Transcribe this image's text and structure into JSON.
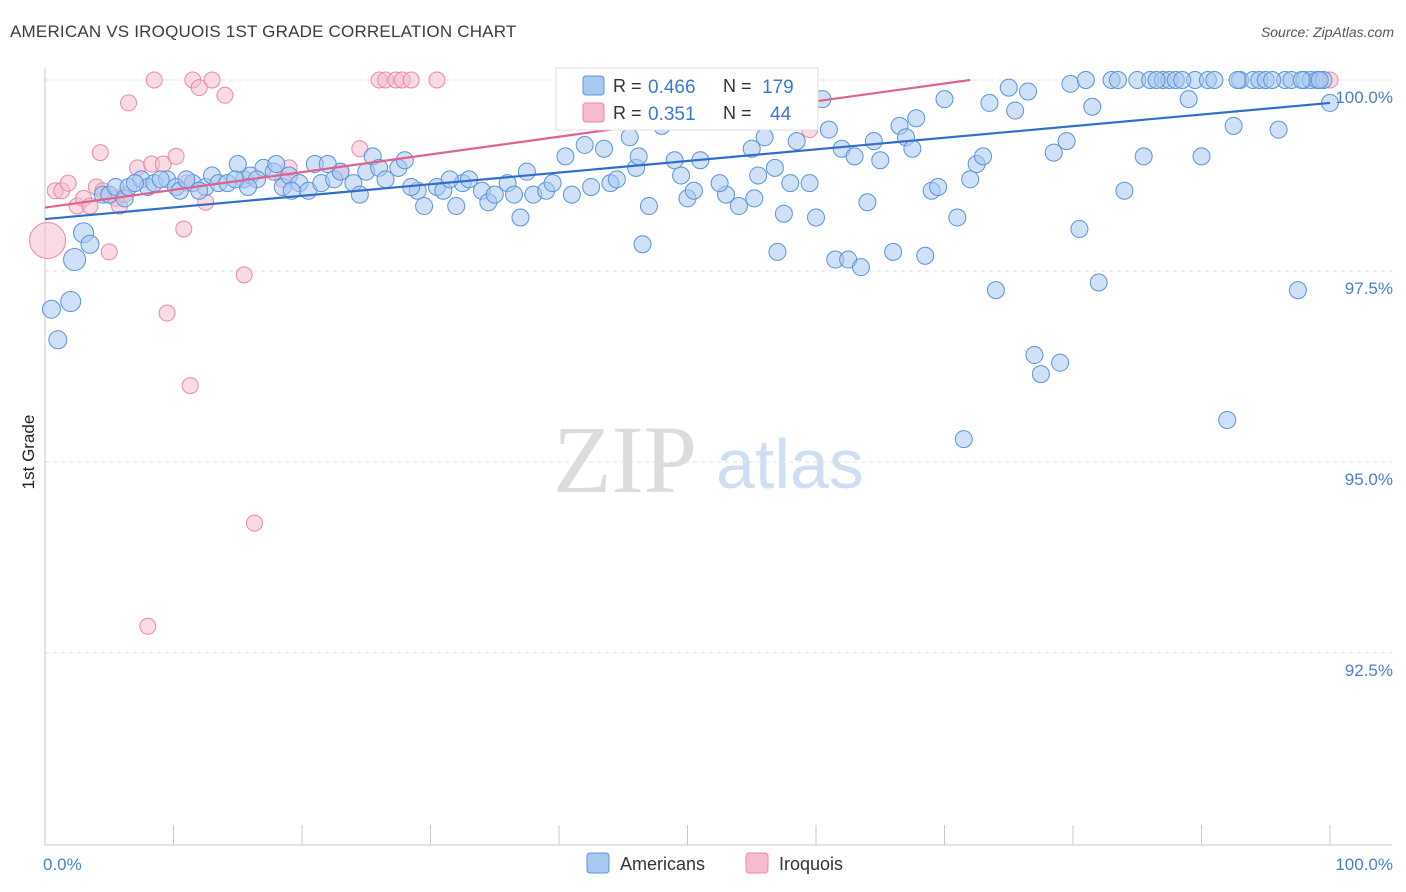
{
  "title": "AMERICAN VS IROQUOIS 1ST GRADE CORRELATION CHART",
  "source": "Source: ZipAtlas.com",
  "watermark": {
    "zip": "ZIP",
    "atlas": "atlas"
  },
  "colors": {
    "americans_fill": "#a9c8f0",
    "americans_stroke": "#5b93dc",
    "americans_line": "#2f6fcc",
    "iroquois_fill": "#f6bccd",
    "iroquois_stroke": "#ea8aa6",
    "iroquois_line": "#e0628c",
    "tick_text": "#4a7fd0",
    "grid": "#e2e2e2"
  },
  "legend": {
    "r_label": "R =",
    "n_label": "N =",
    "rows": [
      {
        "series": "Americans",
        "r": "0.466",
        "n": "179"
      },
      {
        "series": "Iroquois",
        "r": "0.351",
        "n": "44"
      }
    ]
  },
  "chart_data": {
    "type": "scatter",
    "title": "AMERICAN VS IROQUOIS 1ST GRADE CORRELATION CHART",
    "xlabel": "",
    "ylabel": "1st Grade",
    "x_tick_labels": [
      "0.0%",
      "100.0%"
    ],
    "y_tick_labels": [
      "100.0%",
      "97.5%",
      "95.0%",
      "92.5%"
    ],
    "y_ticks": [
      100.0,
      97.5,
      95.0,
      92.5
    ],
    "xlim": [
      0,
      100
    ],
    "ylim": [
      90.25,
      100.5
    ],
    "grid": true,
    "legend_position": "bottom",
    "series": [
      {
        "name": "Americans",
        "trend": [
          [
            0,
            98.18
          ],
          [
            100,
            99.7
          ]
        ],
        "points": [
          [
            0.5,
            97.0
          ],
          [
            1.0,
            96.6
          ],
          [
            2.0,
            97.1
          ],
          [
            2.3,
            97.65
          ],
          [
            3.0,
            98.0
          ],
          [
            3.5,
            97.85
          ],
          [
            4.5,
            98.5
          ],
          [
            5.0,
            98.5
          ],
          [
            5.5,
            98.6
          ],
          [
            6.2,
            98.45
          ],
          [
            6.5,
            98.6
          ],
          [
            7.5,
            98.7
          ],
          [
            8.0,
            98.6
          ],
          [
            8.5,
            98.65
          ],
          [
            9.5,
            98.7
          ],
          [
            10.2,
            98.6
          ],
          [
            10.5,
            98.55
          ],
          [
            11.5,
            98.65
          ],
          [
            12.5,
            98.6
          ],
          [
            13.0,
            98.75
          ],
          [
            13.5,
            98.65
          ],
          [
            14.2,
            98.65
          ],
          [
            15.0,
            98.9
          ],
          [
            15.5,
            98.7
          ],
          [
            16.0,
            98.75
          ],
          [
            17.0,
            98.85
          ],
          [
            16.5,
            98.7
          ],
          [
            17.8,
            98.8
          ],
          [
            18.5,
            98.6
          ],
          [
            19.0,
            98.75
          ],
          [
            19.8,
            98.65
          ],
          [
            20.5,
            98.55
          ],
          [
            21.0,
            98.9
          ],
          [
            21.5,
            98.65
          ],
          [
            22.5,
            98.7
          ],
          [
            23.0,
            98.8
          ],
          [
            24.0,
            98.65
          ],
          [
            25.0,
            98.8
          ],
          [
            25.5,
            99.0
          ],
          [
            26.0,
            98.85
          ],
          [
            26.5,
            98.7
          ],
          [
            27.5,
            98.85
          ],
          [
            28.0,
            98.95
          ],
          [
            29.0,
            98.55
          ],
          [
            29.5,
            98.35
          ],
          [
            30.5,
            98.6
          ],
          [
            31.0,
            98.55
          ],
          [
            32.0,
            98.35
          ],
          [
            32.5,
            98.65
          ],
          [
            33.0,
            98.7
          ],
          [
            34.0,
            98.55
          ],
          [
            34.5,
            98.4
          ],
          [
            35.0,
            98.5
          ],
          [
            36.0,
            98.65
          ],
          [
            37.0,
            98.2
          ],
          [
            37.5,
            98.8
          ],
          [
            38.0,
            98.5
          ],
          [
            39.0,
            98.55
          ],
          [
            39.5,
            98.65
          ],
          [
            40.5,
            99.0
          ],
          [
            41.0,
            98.5
          ],
          [
            42.0,
            99.15
          ],
          [
            42.5,
            98.6
          ],
          [
            43.5,
            99.1
          ],
          [
            44.0,
            98.65
          ],
          [
            44.5,
            98.7
          ],
          [
            45.5,
            99.25
          ],
          [
            46.0,
            98.85
          ],
          [
            47.0,
            98.35
          ],
          [
            46.5,
            97.85
          ],
          [
            48.0,
            99.4
          ],
          [
            49.0,
            98.95
          ],
          [
            49.5,
            98.75
          ],
          [
            50.0,
            98.45
          ],
          [
            50.5,
            98.55
          ],
          [
            51.0,
            98.95
          ],
          [
            53.0,
            98.5
          ],
          [
            54.0,
            98.35
          ],
          [
            55.0,
            99.1
          ],
          [
            55.5,
            98.75
          ],
          [
            56.0,
            99.25
          ],
          [
            57.0,
            97.75
          ],
          [
            57.5,
            98.25
          ],
          [
            58.5,
            99.2
          ],
          [
            59.5,
            98.65
          ],
          [
            60.0,
            98.2
          ],
          [
            61.5,
            97.65
          ],
          [
            62.0,
            99.1
          ],
          [
            62.5,
            97.65
          ],
          [
            63.0,
            99.0
          ],
          [
            63.5,
            97.55
          ],
          [
            65.0,
            98.95
          ],
          [
            64.0,
            98.4
          ],
          [
            66.0,
            97.75
          ],
          [
            66.5,
            99.4
          ],
          [
            67.0,
            99.25
          ],
          [
            67.5,
            99.1
          ],
          [
            68.5,
            97.7
          ],
          [
            69.0,
            98.55
          ],
          [
            69.5,
            98.6
          ],
          [
            70.0,
            99.75
          ],
          [
            71.0,
            98.2
          ],
          [
            71.5,
            95.3
          ],
          [
            72.0,
            98.7
          ],
          [
            72.5,
            98.9
          ],
          [
            73.0,
            99.0
          ],
          [
            74.0,
            97.25
          ],
          [
            75.0,
            99.9
          ],
          [
            75.5,
            99.6
          ],
          [
            76.5,
            99.85
          ],
          [
            77.0,
            96.4
          ],
          [
            77.5,
            96.15
          ],
          [
            78.5,
            99.05
          ],
          [
            79.0,
            96.3
          ],
          [
            79.5,
            99.2
          ],
          [
            80.5,
            98.05
          ],
          [
            81.5,
            99.65
          ],
          [
            82.0,
            97.35
          ],
          [
            83.0,
            100.0
          ],
          [
            83.5,
            100.0
          ],
          [
            84.0,
            98.55
          ],
          [
            85.0,
            100.0
          ],
          [
            85.5,
            99.0
          ],
          [
            86.0,
            100.0
          ],
          [
            87.0,
            100.0
          ],
          [
            87.5,
            100.0
          ],
          [
            88.0,
            100.0
          ],
          [
            89.0,
            99.75
          ],
          [
            89.5,
            100.0
          ],
          [
            90.0,
            99.0
          ],
          [
            90.5,
            100.0
          ],
          [
            91.0,
            100.0
          ],
          [
            92.0,
            95.55
          ],
          [
            92.5,
            99.4
          ],
          [
            93.0,
            100.0
          ],
          [
            94.0,
            100.0
          ],
          [
            94.5,
            100.0
          ],
          [
            95.0,
            100.0
          ],
          [
            96.0,
            99.35
          ],
          [
            96.5,
            100.0
          ],
          [
            97.0,
            100.0
          ],
          [
            97.5,
            97.25
          ],
          [
            98.0,
            100.0
          ],
          [
            98.5,
            100.0
          ],
          [
            99.0,
            100.0
          ],
          [
            99.5,
            100.0
          ],
          [
            100.0,
            99.7
          ],
          [
            61.0,
            99.35
          ],
          [
            64.5,
            99.2
          ],
          [
            51.5,
            99.65
          ],
          [
            36.5,
            98.5
          ],
          [
            52.5,
            98.65
          ],
          [
            55.2,
            98.45
          ],
          [
            56.8,
            98.85
          ],
          [
            58.0,
            98.65
          ],
          [
            46.2,
            99.0
          ],
          [
            31.5,
            98.7
          ],
          [
            28.5,
            98.6
          ],
          [
            24.5,
            98.5
          ],
          [
            22.0,
            98.9
          ],
          [
            19.2,
            98.55
          ],
          [
            15.8,
            98.6
          ],
          [
            12.0,
            98.55
          ],
          [
            9.0,
            98.7
          ],
          [
            7.0,
            98.65
          ],
          [
            11.0,
            98.7
          ],
          [
            14.8,
            98.7
          ],
          [
            18.0,
            98.9
          ],
          [
            60.5,
            99.75
          ],
          [
            67.8,
            99.5
          ],
          [
            73.5,
            99.7
          ],
          [
            79.8,
            99.95
          ],
          [
            86.5,
            100.0
          ],
          [
            88.5,
            100.0
          ],
          [
            92.8,
            100.0
          ],
          [
            95.5,
            100.0
          ],
          [
            97.8,
            100.0
          ],
          [
            99.2,
            100.0
          ],
          [
            81.0,
            100.0
          ]
        ]
      },
      {
        "name": "Iroquois",
        "trend": [
          [
            0,
            98.33
          ],
          [
            72,
            100.0
          ]
        ],
        "points": [
          [
            0.2,
            97.9
          ],
          [
            0.8,
            98.55
          ],
          [
            1.3,
            98.55
          ],
          [
            1.8,
            98.65
          ],
          [
            2.5,
            98.35
          ],
          [
            3.0,
            98.45
          ],
          [
            3.5,
            98.35
          ],
          [
            4.0,
            98.6
          ],
          [
            4.3,
            99.05
          ],
          [
            4.5,
            98.55
          ],
          [
            5.0,
            97.75
          ],
          [
            5.5,
            98.45
          ],
          [
            5.8,
            98.35
          ],
          [
            6.2,
            98.5
          ],
          [
            6.5,
            99.7
          ],
          [
            7.2,
            98.85
          ],
          [
            8.3,
            98.9
          ],
          [
            8.5,
            100.0
          ],
          [
            9.2,
            98.9
          ],
          [
            9.5,
            96.95
          ],
          [
            10.2,
            99.0
          ],
          [
            10.8,
            98.05
          ],
          [
            11.0,
            98.65
          ],
          [
            11.3,
            96.0
          ],
          [
            11.5,
            100.0
          ],
          [
            12.0,
            99.9
          ],
          [
            12.5,
            98.4
          ],
          [
            13.0,
            100.0
          ],
          [
            14.0,
            99.8
          ],
          [
            15.5,
            97.45
          ],
          [
            16.3,
            94.2
          ],
          [
            18.5,
            98.7
          ],
          [
            19.0,
            98.85
          ],
          [
            23.0,
            98.8
          ],
          [
            24.5,
            99.1
          ],
          [
            26.0,
            100.0
          ],
          [
            26.5,
            100.0
          ],
          [
            27.3,
            100.0
          ],
          [
            27.8,
            100.0
          ],
          [
            28.5,
            100.0
          ],
          [
            30.5,
            100.0
          ],
          [
            8.0,
            92.85
          ],
          [
            59.5,
            99.35
          ],
          [
            100.0,
            100.0
          ]
        ]
      }
    ]
  }
}
